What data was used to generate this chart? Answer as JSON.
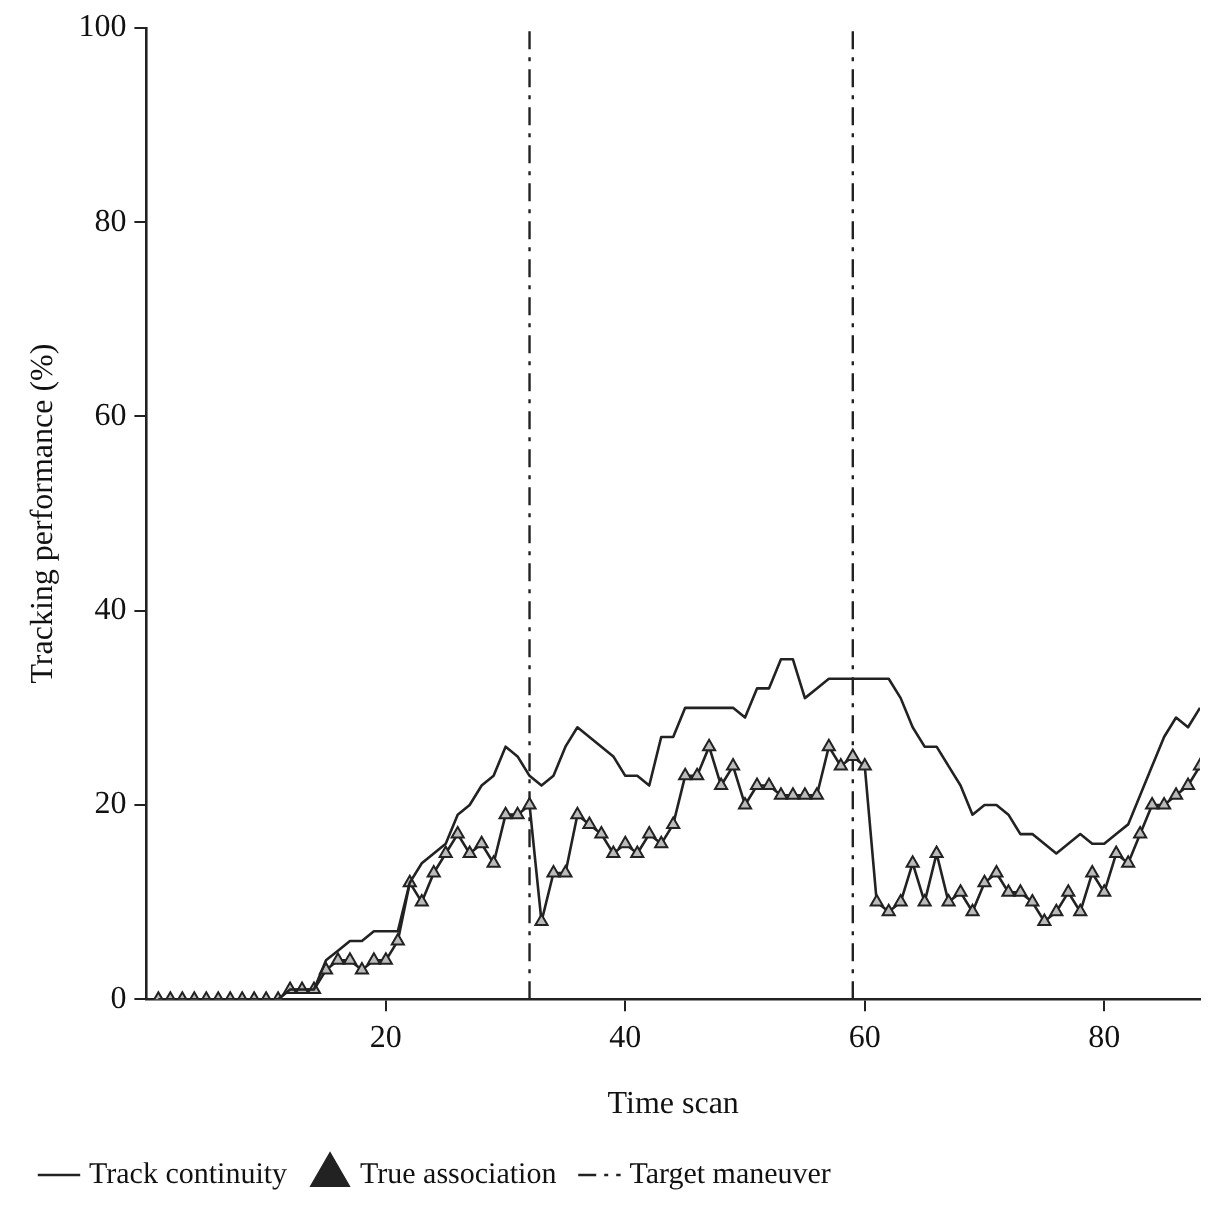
{
  "chart_data": {
    "type": "line",
    "xlabel": "Time scan",
    "ylabel": "Tracking performance (%)",
    "x": [
      1,
      2,
      3,
      4,
      5,
      6,
      7,
      8,
      9,
      10,
      11,
      12,
      13,
      14,
      15,
      16,
      17,
      18,
      19,
      20,
      21,
      22,
      23,
      24,
      25,
      26,
      27,
      28,
      29,
      30,
      31,
      32,
      33,
      34,
      35,
      36,
      37,
      38,
      39,
      40,
      41,
      42,
      43,
      44,
      45,
      46,
      47,
      48,
      49,
      50,
      51,
      52,
      53,
      54,
      55,
      56,
      57,
      58,
      59,
      60,
      61,
      62,
      63,
      64,
      65,
      66,
      67,
      68,
      69,
      70,
      71,
      72,
      73,
      74,
      75,
      76,
      77,
      78,
      79,
      80,
      81,
      82,
      83,
      84,
      85,
      86,
      87,
      88
    ],
    "series": [
      {
        "name": "Track continuity",
        "color": "#222222",
        "marker": "none",
        "values": [
          0,
          0,
          0,
          0,
          0,
          0,
          0,
          0,
          0,
          0,
          0,
          1,
          1,
          1,
          4,
          5,
          6,
          6,
          7,
          7,
          7,
          12,
          14,
          15,
          16,
          19,
          20,
          22,
          23,
          26,
          25,
          23,
          22,
          23,
          26,
          28,
          27,
          26,
          25,
          23,
          23,
          22,
          27,
          27,
          30,
          30,
          30,
          30,
          30,
          29,
          32,
          32,
          35,
          35,
          31,
          32,
          33,
          33,
          33,
          33,
          33,
          33,
          31,
          28,
          26,
          26,
          24,
          22,
          19,
          20,
          20,
          19,
          17,
          17,
          16,
          15,
          16,
          17,
          16,
          16,
          17,
          18,
          21,
          24,
          27,
          29,
          28,
          30
        ]
      },
      {
        "name": "True association",
        "color": "#222222",
        "marker": "triangle",
        "values": [
          0,
          0,
          0,
          0,
          0,
          0,
          0,
          0,
          0,
          0,
          0,
          1,
          1,
          1,
          3,
          4,
          4,
          3,
          4,
          4,
          6,
          12,
          10,
          13,
          15,
          17,
          15,
          16,
          14,
          19,
          19,
          20,
          8,
          13,
          13,
          19,
          18,
          17,
          15,
          16,
          15,
          17,
          16,
          18,
          23,
          23,
          26,
          22,
          24,
          20,
          22,
          22,
          21,
          21,
          21,
          21,
          26,
          24,
          25,
          24,
          10,
          9,
          10,
          14,
          10,
          15,
          10,
          11,
          9,
          12,
          13,
          11,
          11,
          10,
          8,
          9,
          11,
          9,
          13,
          11,
          15,
          14,
          17,
          20,
          20,
          21,
          22,
          24
        ]
      }
    ],
    "ref_lines": [
      {
        "axis": "x",
        "value": 32,
        "label": "Target maneuver",
        "line_style": "dashed",
        "color": "#222222"
      },
      {
        "axis": "x",
        "value": 59,
        "line_style": "dashed",
        "color": "#222222"
      }
    ],
    "xlim": [
      0,
      88
    ],
    "xticks": [
      20,
      40,
      60,
      80
    ],
    "ylim": [
      0,
      100
    ],
    "yticks": [
      0,
      20,
      40,
      60,
      80,
      100
    ],
    "grid": false,
    "legend": "bottom left"
  }
}
